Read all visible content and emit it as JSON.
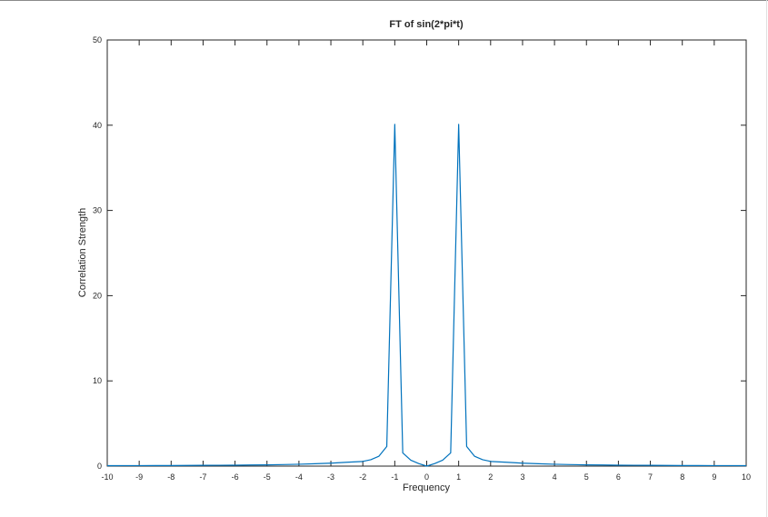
{
  "chart_data": {
    "type": "line",
    "title": "FT of sin(2*pi*t)",
    "xlabel": "Frequency",
    "ylabel": "Correlation Strength",
    "xlim": [
      -10,
      10
    ],
    "ylim": [
      0,
      50
    ],
    "xticks": [
      -10,
      -9,
      -8,
      -7,
      -6,
      -5,
      -4,
      -3,
      -2,
      -1,
      0,
      1,
      2,
      3,
      4,
      5,
      6,
      7,
      8,
      9,
      10
    ],
    "yticks": [
      0,
      10,
      20,
      30,
      40,
      50
    ],
    "grid": false,
    "line_color": "#0072bd",
    "series": [
      {
        "x": [
          -10,
          -9.5,
          -9,
          -8.5,
          -8,
          -7.5,
          -7,
          -6.5,
          -6,
          -5.5,
          -5,
          -4.5,
          -4,
          -3.5,
          -3,
          -2.5,
          -2,
          -1.75,
          -1.5,
          -1.25,
          -1,
          -0.75,
          -0.5,
          -0.25,
          0,
          0.25,
          0.5,
          0.75,
          1,
          1.25,
          1.5,
          1.75,
          2,
          2.5,
          3,
          3.5,
          4,
          4.5,
          5,
          5.5,
          6,
          6.5,
          7,
          7.5,
          8,
          8.5,
          9,
          9.5,
          10
        ],
        "values": [
          0.05,
          0.06,
          0.06,
          0.07,
          0.07,
          0.08,
          0.09,
          0.1,
          0.11,
          0.13,
          0.15,
          0.18,
          0.22,
          0.28,
          0.35,
          0.45,
          0.55,
          0.75,
          1.15,
          2.3,
          40.1,
          1.55,
          0.7,
          0.3,
          0.0,
          0.3,
          0.7,
          1.55,
          40.1,
          2.3,
          1.15,
          0.75,
          0.55,
          0.45,
          0.35,
          0.28,
          0.22,
          0.18,
          0.15,
          0.13,
          0.11,
          0.1,
          0.09,
          0.08,
          0.07,
          0.07,
          0.06,
          0.06,
          0.05
        ]
      }
    ]
  }
}
